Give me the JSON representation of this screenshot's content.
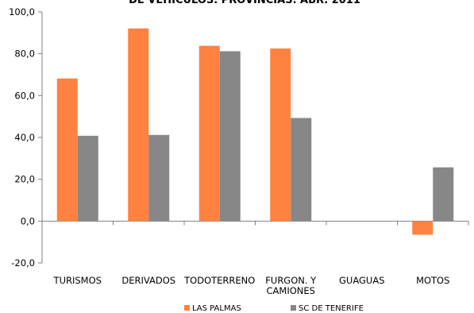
{
  "chart_data": {
    "type": "bar",
    "title": "DE VEHÍCULOS. PROVINCIAS. ABR. 2011",
    "xlabel": "",
    "ylabel": "",
    "categories": [
      [
        "TURISMOS"
      ],
      [
        "DERIVADOS"
      ],
      [
        "TODOTERRENO"
      ],
      [
        "FURGON. Y",
        "CAMIONES"
      ],
      [
        "GUAGUAS"
      ],
      [
        "MOTOS"
      ]
    ],
    "series": [
      {
        "name": "LAS PALMAS",
        "color": "#FF8241",
        "values": [
          68.2,
          92.1,
          83.8,
          82.5,
          0,
          -6.5
        ]
      },
      {
        "name": "SC DE TENERIFE",
        "color": "#878787",
        "values": [
          40.8,
          41.2,
          81.2,
          49.3,
          0,
          25.7
        ]
      }
    ],
    "ylim": [
      -20,
      100
    ],
    "yticks": [
      "-20,0",
      "0,0",
      "20,0",
      "40,0",
      "60,0",
      "80,0",
      "100,0"
    ],
    "grid": false,
    "legend_position": "bottom"
  }
}
